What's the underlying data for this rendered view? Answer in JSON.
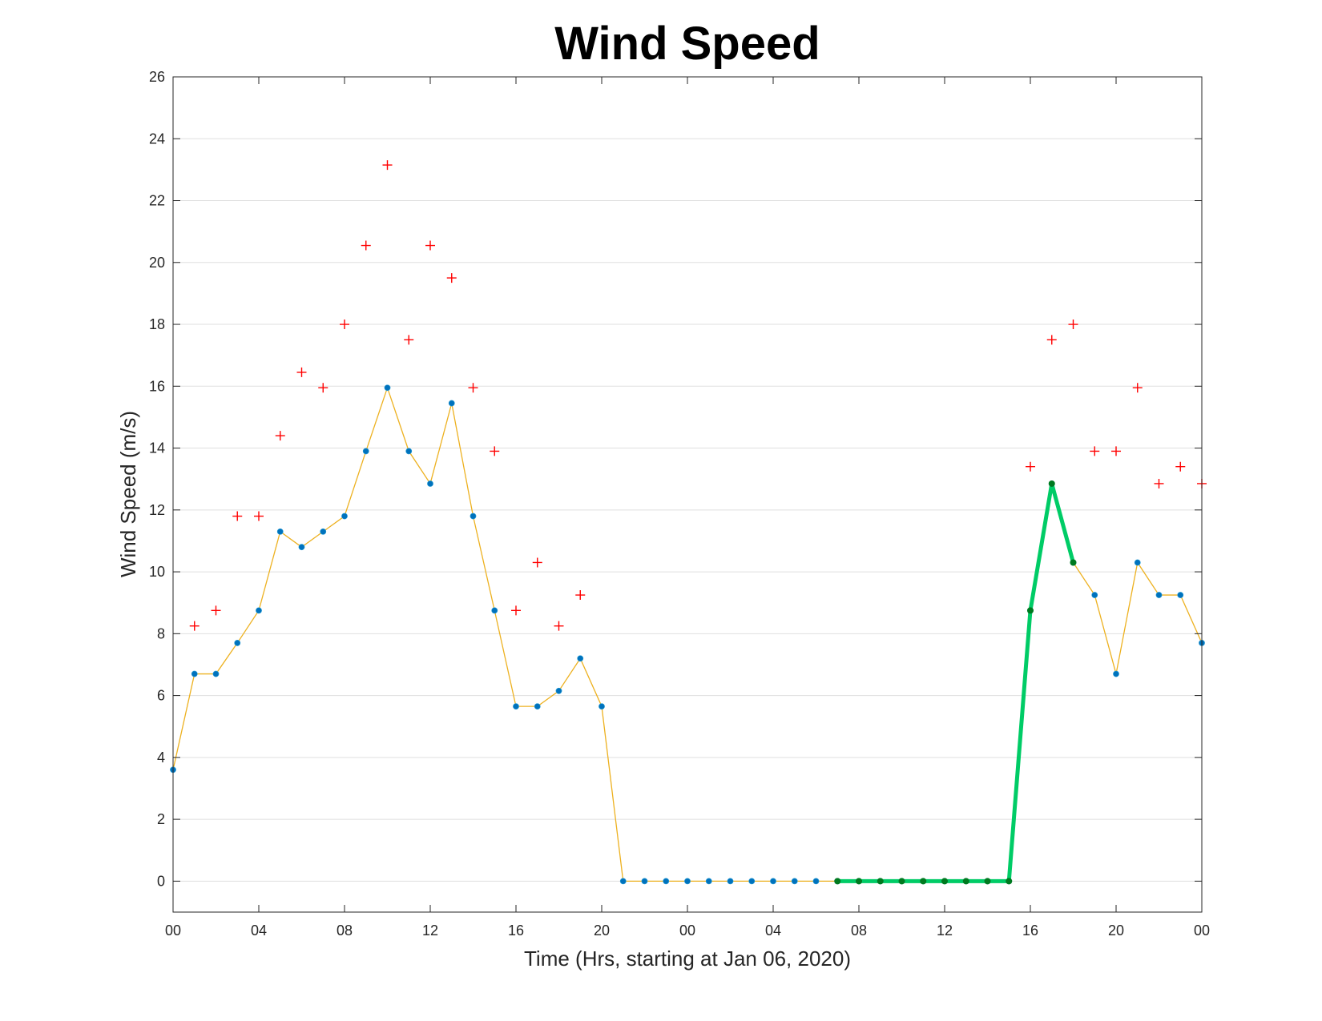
{
  "chart_data": {
    "type": "line",
    "title": "Wind Speed",
    "xlabel": "Time (Hrs, starting at Jan 06, 2020)",
    "ylabel": "Wind Speed (m/s)",
    "xlim": [
      0,
      48
    ],
    "ylim": [
      -1,
      26
    ],
    "grid": "horizontal",
    "x_ticks": [
      {
        "x": 0,
        "label": "00"
      },
      {
        "x": 4,
        "label": "04"
      },
      {
        "x": 8,
        "label": "08"
      },
      {
        "x": 12,
        "label": "12"
      },
      {
        "x": 16,
        "label": "16"
      },
      {
        "x": 20,
        "label": "20"
      },
      {
        "x": 24,
        "label": "00"
      },
      {
        "x": 28,
        "label": "04"
      },
      {
        "x": 32,
        "label": "08"
      },
      {
        "x": 36,
        "label": "12"
      },
      {
        "x": 40,
        "label": "16"
      },
      {
        "x": 44,
        "label": "20"
      },
      {
        "x": 48,
        "label": "00"
      }
    ],
    "y_ticks": [
      0,
      2,
      4,
      6,
      8,
      10,
      12,
      14,
      16,
      18,
      20,
      22,
      24,
      26
    ],
    "series": [
      {
        "style": "line-dots",
        "line_color": "#EDB120",
        "marker_color": "#0072BD",
        "x": [
          0,
          1,
          2,
          3,
          4,
          5,
          6,
          7,
          8,
          9,
          10,
          11,
          12,
          13,
          14,
          15,
          16,
          17,
          18,
          19,
          20,
          21,
          22,
          23,
          24,
          25,
          26,
          27,
          28,
          29,
          30,
          31,
          32,
          33,
          34,
          35,
          36,
          37,
          38,
          39,
          40,
          41,
          42,
          43,
          44,
          45,
          46,
          47,
          48
        ],
        "values": [
          3.6,
          6.7,
          6.7,
          7.7,
          8.75,
          11.3,
          10.8,
          11.3,
          11.8,
          13.9,
          15.95,
          13.9,
          12.85,
          15.45,
          11.8,
          8.75,
          5.65,
          5.65,
          6.15,
          7.2,
          5.65,
          0,
          0,
          0,
          0,
          0,
          0,
          0,
          0,
          0,
          0,
          0,
          0,
          0,
          0,
          0,
          0,
          0,
          0,
          0,
          8.75,
          12.85,
          10.3,
          9.25,
          6.7,
          10.3,
          9.25,
          9.25,
          7.7
        ]
      },
      {
        "style": "plus",
        "marker_color": "#FF0000",
        "x": [
          1,
          2,
          3,
          4,
          5,
          6,
          7,
          8,
          9,
          10,
          11,
          12,
          13,
          14,
          15,
          16,
          17,
          18,
          19,
          40,
          41,
          42,
          43,
          44,
          45,
          46,
          47,
          48
        ],
        "values": [
          8.25,
          8.75,
          11.8,
          11.8,
          14.4,
          16.45,
          15.95,
          18.0,
          20.55,
          23.15,
          17.5,
          20.55,
          19.5,
          15.95,
          13.9,
          8.75,
          10.3,
          8.25,
          9.25,
          13.4,
          17.5,
          18.0,
          13.9,
          13.9,
          15.95,
          12.85,
          13.4,
          12.85
        ]
      },
      {
        "style": "highlight",
        "line_color": "#00CC66",
        "marker_color": "#007A1F",
        "x": [
          31,
          32,
          33,
          34,
          35,
          36,
          37,
          38,
          39,
          40,
          41,
          42
        ],
        "values": [
          0,
          0,
          0,
          0,
          0,
          0,
          0,
          0,
          0,
          8.75,
          12.85,
          10.3
        ]
      }
    ]
  }
}
